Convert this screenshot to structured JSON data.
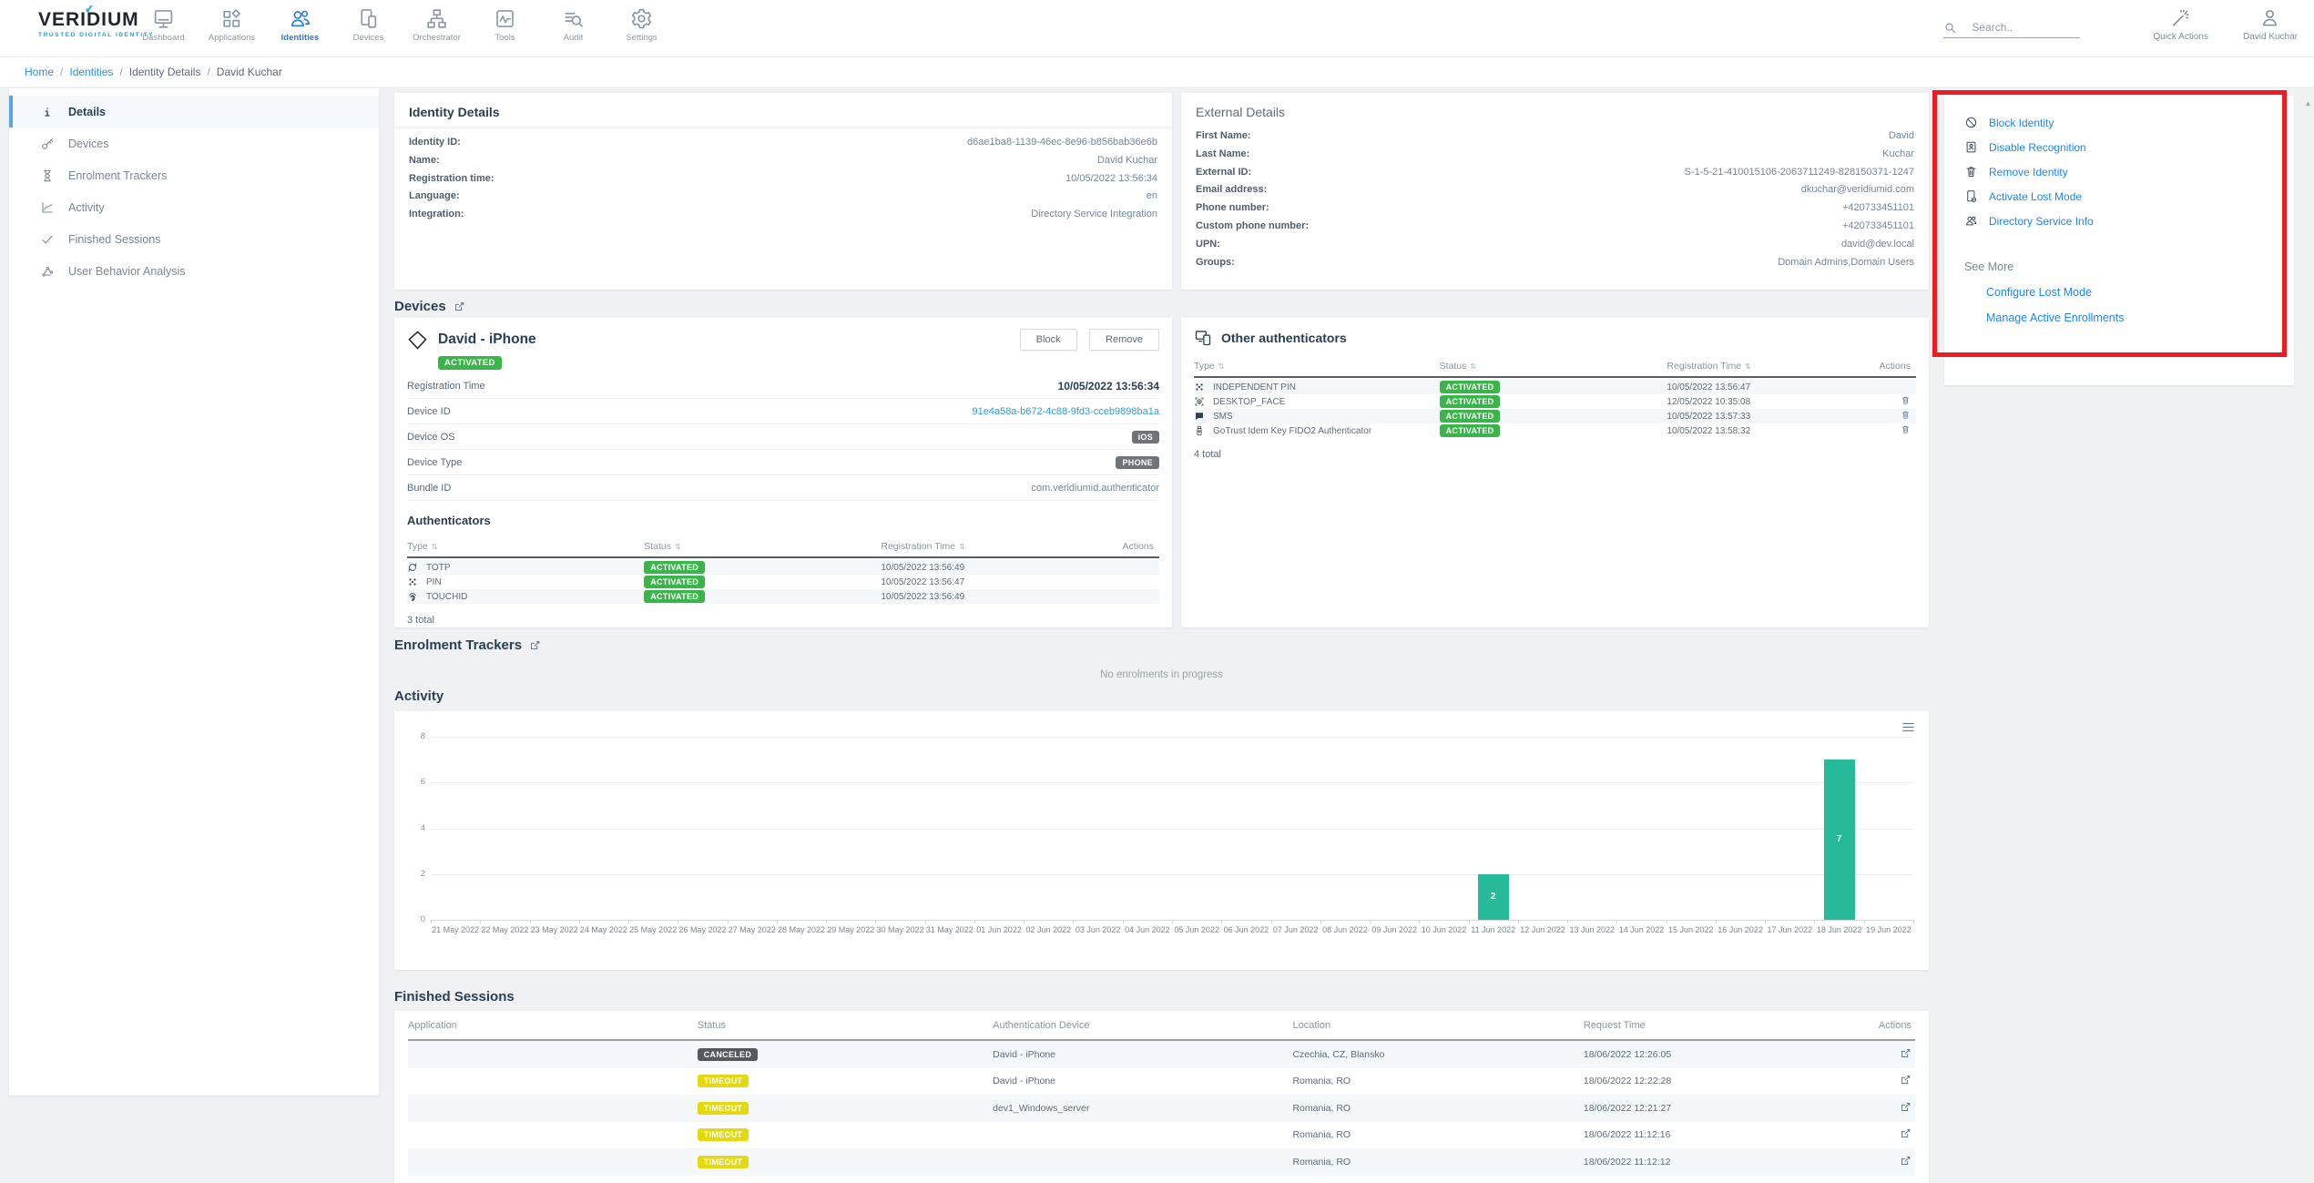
{
  "colors": {
    "accent_blue": "#1f86ea",
    "nav_active_blue": "#2f7bd9",
    "teal_bar": "#26b99a",
    "activated_green": "#3ab54a",
    "device_badge_gray": "#6e7479",
    "canceled_badge": "#55585d",
    "timeout_badge": "#e4d90e",
    "annotation_red": "#ec1c24"
  },
  "brand": {
    "name": "VERIDIUM",
    "tagline": "TRUSTED DIGITAL IDENTITY"
  },
  "nav": {
    "items": [
      {
        "label": "Dashboard",
        "icon": "dashboard-icon",
        "active": false
      },
      {
        "label": "Applications",
        "icon": "applications-icon",
        "active": false
      },
      {
        "label": "Identities",
        "icon": "identities-icon",
        "active": true
      },
      {
        "label": "Devices",
        "icon": "devices-icon",
        "active": false
      },
      {
        "label": "Orchestrator",
        "icon": "orchestrator-icon",
        "active": false
      },
      {
        "label": "Tools",
        "icon": "tools-icon",
        "active": false
      },
      {
        "label": "Audit",
        "icon": "audit-icon",
        "active": false
      },
      {
        "label": "Settings",
        "icon": "settings-icon",
        "active": false
      }
    ]
  },
  "topbar": {
    "search_placeholder": "Search..",
    "quick_actions_label": "Quick Actions",
    "user_label": "David Kuchar"
  },
  "breadcrumb": [
    {
      "label": "Home",
      "link": true
    },
    {
      "label": "Identities",
      "link": true
    },
    {
      "label": "Identity Details",
      "link": false
    },
    {
      "label": "David Kuchar",
      "link": false
    }
  ],
  "sidebar": [
    {
      "label": "Details",
      "icon": "info-icon",
      "active": true
    },
    {
      "label": "Devices",
      "icon": "key-icon",
      "active": false
    },
    {
      "label": "Enrolment Trackers",
      "icon": "hourglass-icon",
      "active": false
    },
    {
      "label": "Activity",
      "icon": "activity-icon",
      "active": false
    },
    {
      "label": "Finished Sessions",
      "icon": "check-icon",
      "active": false
    },
    {
      "label": "User Behavior Analysis",
      "icon": "behavior-icon",
      "active": false
    }
  ],
  "identity_details": {
    "title": "Identity Details",
    "fields": [
      {
        "label": "Identity ID:",
        "value": "d6ae1ba8-1139-46ec-8e96-b856bab36e6b"
      },
      {
        "label": "Name:",
        "value": "David Kuchar"
      },
      {
        "label": "Registration time:",
        "value": "10/05/2022 13:56:34"
      },
      {
        "label": "Language:",
        "value": "en"
      },
      {
        "label": "Integration:",
        "value": "Directory Service Integration"
      }
    ]
  },
  "external_details": {
    "title": "External Details",
    "fields": [
      {
        "label": "First Name:",
        "value": "David"
      },
      {
        "label": "Last Name:",
        "value": "Kuchar"
      },
      {
        "label": "External ID:",
        "value": "S-1-5-21-410015106-2063711249-828150371-1247"
      },
      {
        "label": "Email address:",
        "value": "dkuchar@veridiumid.com"
      },
      {
        "label": "Phone number:",
        "value": "+420733451101"
      },
      {
        "label": "Custom phone number:",
        "value": "+420733451101"
      },
      {
        "label": "UPN:",
        "value": "david@dev.local"
      },
      {
        "label": "Groups:",
        "value": "Domain Admins,Domain Users"
      }
    ]
  },
  "actions_panel": {
    "actions": [
      {
        "label": "Block Identity",
        "icon": "block-icon"
      },
      {
        "label": "Disable Recognition",
        "icon": "recognition-icon"
      },
      {
        "label": "Remove Identity",
        "icon": "trash-icon"
      },
      {
        "label": "Activate Lost Mode",
        "icon": "lost-mode-icon"
      },
      {
        "label": "Directory Service Info",
        "icon": "directory-icon"
      }
    ],
    "see_more_label": "See More",
    "see_more_links": [
      "Configure Lost Mode",
      "Manage Active Enrollments"
    ]
  },
  "devices_section": {
    "title": "Devices",
    "device": {
      "name": "David - iPhone",
      "status": "ACTIVATED",
      "block_label": "Block",
      "remove_label": "Remove",
      "rows": [
        {
          "label": "Registration Time",
          "value": "10/05/2022 13:56:34",
          "style": "bold"
        },
        {
          "label": "Device ID",
          "value": "91e4a58a-b672-4c88-9fd3-cceb9898ba1a",
          "style": "link"
        },
        {
          "label": "Device OS",
          "value": "iOS",
          "style": "badge"
        },
        {
          "label": "Device Type",
          "value": "PHONE",
          "style": "badge"
        },
        {
          "label": "Bundle ID",
          "value": "com.veridiumid.authenticator",
          "style": "plain"
        }
      ],
      "authenticators": {
        "title": "Authenticators",
        "columns": [
          "Type",
          "Status",
          "Registration Time",
          "Actions"
        ],
        "rows": [
          {
            "type": "TOTP",
            "icon": "totp-icon",
            "status": "ACTIVATED",
            "time": "10/05/2022 13:56:49",
            "deletable": false
          },
          {
            "type": "PIN",
            "icon": "pin-icon",
            "status": "ACTIVATED",
            "time": "10/05/2022 13:56:47",
            "deletable": false
          },
          {
            "type": "TOUCHID",
            "icon": "fingerprint-icon",
            "status": "ACTIVATED",
            "time": "10/05/2022 13:56:49",
            "deletable": false
          }
        ],
        "total": "3 total"
      }
    }
  },
  "other_authenticators": {
    "title": "Other authenticators",
    "columns": [
      "Type",
      "Status",
      "Registration Time",
      "Actions"
    ],
    "rows": [
      {
        "type": "INDEPENDENT PIN",
        "icon": "pin-icon",
        "status": "ACTIVATED",
        "time": "10/05/2022 13:56:47",
        "deletable": false
      },
      {
        "type": "DESKTOP_FACE",
        "icon": "face-icon",
        "status": "ACTIVATED",
        "time": "12/05/2022 10:35:08",
        "deletable": true
      },
      {
        "type": "SMS",
        "icon": "sms-icon",
        "status": "ACTIVATED",
        "time": "10/05/2022 13:57:33",
        "deletable": true
      },
      {
        "type": "GoTrust Idem Key FIDO2 Authenticator",
        "icon": "usb-icon",
        "status": "ACTIVATED",
        "time": "10/05/2022 13:58:32",
        "deletable": true
      }
    ],
    "total": "4 total"
  },
  "enrolment": {
    "title": "Enrolment Trackers",
    "empty_text": "No enrolments in progress"
  },
  "activity": {
    "title": "Activity"
  },
  "chart_data": {
    "type": "bar",
    "title": "Activity",
    "categories": [
      "21 May 2022",
      "22 May 2022",
      "23 May 2022",
      "24 May 2022",
      "25 May 2022",
      "26 May 2022",
      "27 May 2022",
      "28 May 2022",
      "29 May 2022",
      "30 May 2022",
      "31 May 2022",
      "01 Jun 2022",
      "02 Jun 2022",
      "03 Jun 2022",
      "04 Jun 2022",
      "05 Jun 2022",
      "06 Jun 2022",
      "07 Jun 2022",
      "08 Jun 2022",
      "09 Jun 2022",
      "10 Jun 2022",
      "11 Jun 2022",
      "12 Jun 2022",
      "13 Jun 2022",
      "14 Jun 2022",
      "15 Jun 2022",
      "16 Jun 2022",
      "17 Jun 2022",
      "18 Jun 2022",
      "19 Jun 2022"
    ],
    "values": [
      0,
      0,
      0,
      0,
      0,
      0,
      0,
      0,
      0,
      0,
      0,
      0,
      0,
      0,
      0,
      0,
      0,
      0,
      0,
      0,
      0,
      2,
      0,
      0,
      0,
      0,
      0,
      0,
      7,
      0
    ],
    "xlabel": "",
    "ylabel": "",
    "ylim": [
      0,
      8
    ],
    "yticks": [
      0,
      2,
      4,
      6,
      8
    ],
    "grid": true,
    "legend": false,
    "bar_color": "#26b99a"
  },
  "finished_sessions": {
    "title": "Finished Sessions",
    "columns": [
      "Application",
      "Status",
      "Authentication Device",
      "Location",
      "Request Time",
      "Actions"
    ],
    "rows": [
      {
        "application": "",
        "status": "CANCELED",
        "device": "David - iPhone",
        "location": "Czechia, CZ, Blansko",
        "time": "18/06/2022 12:26:05"
      },
      {
        "application": "",
        "status": "TIMEOUT",
        "device": "David - iPhone",
        "location": "Romania, RO",
        "time": "18/06/2022 12:22:28"
      },
      {
        "application": "",
        "status": "TIMEOUT",
        "device": "dev1_Windows_server",
        "location": "Romania, RO",
        "time": "18/06/2022 12:21:27"
      },
      {
        "application": "",
        "status": "TIMEOUT",
        "device": "",
        "location": "Romania, RO",
        "time": "18/06/2022 11:12:16"
      },
      {
        "application": "",
        "status": "TIMEOUT",
        "device": "",
        "location": "Romania, RO",
        "time": "18/06/2022 11:12:12"
      }
    ]
  }
}
